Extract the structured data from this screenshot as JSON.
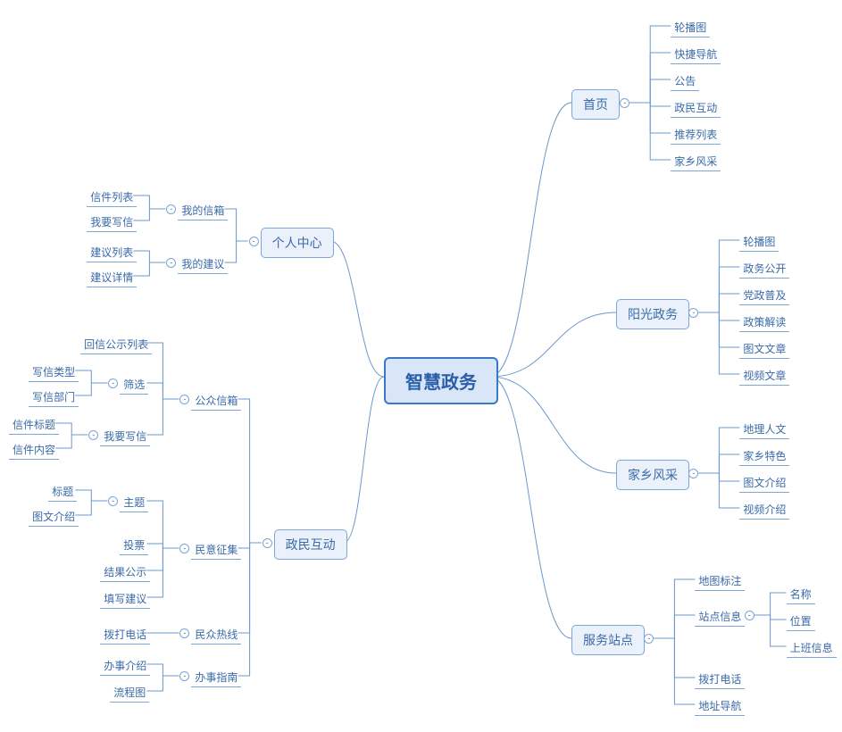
{
  "colors": {
    "root_border": "#3a78c8",
    "root_bg": "#d9e6f7",
    "root_text": "#2a5ea8",
    "node_border": "#7aa6d8",
    "node_bg": "#eaf1fa",
    "node_text": "#3a6aa8",
    "edge": "#6b98cc"
  },
  "root": {
    "label": "智慧政务"
  },
  "right": {
    "home": {
      "label": "首页",
      "leaves": [
        "轮播图",
        "快捷导航",
        "公告",
        "政民互动",
        "推荐列表",
        "家乡风采"
      ]
    },
    "sunny": {
      "label": "阳光政务",
      "leaves": [
        "轮播图",
        "政务公开",
        "党政普及",
        "政策解读",
        "图文文章",
        "视频文章"
      ]
    },
    "town": {
      "label": "家乡风采",
      "leaves": [
        "地理人文",
        "家乡特色",
        "图文介绍",
        "视频介绍"
      ]
    },
    "service": {
      "label": "服务站点",
      "leaves": [
        "地图标注",
        "站点信息",
        "拨打电话",
        "地址导航"
      ],
      "site_info_sub": [
        "名称",
        "位置",
        "上班信息"
      ]
    }
  },
  "left": {
    "personal": {
      "label": "个人中心",
      "mailbox": {
        "label": "我的信箱",
        "leaves": [
          "信件列表",
          "我要写信"
        ]
      },
      "suggest": {
        "label": "我的建议",
        "leaves": [
          "建议列表",
          "建议详情"
        ]
      }
    },
    "interact": {
      "label": "政民互动",
      "public_mail": {
        "label": "公众信箱",
        "leaf_simple": "回信公示列表",
        "filter": {
          "label": "筛选",
          "leaves": [
            "写信类型",
            "写信部门"
          ]
        },
        "write": {
          "label": "我要写信",
          "leaves": [
            "信件标题",
            "信件内容"
          ]
        }
      },
      "poll": {
        "label": "民意征集",
        "topic": {
          "label": "主题",
          "leaves": [
            "标题",
            "图文介绍"
          ]
        },
        "leaves": [
          "投票",
          "结果公示",
          "填写建议"
        ]
      },
      "hotline": {
        "label": "民众热线",
        "leaves": [
          "拨打电话"
        ]
      },
      "guide": {
        "label": "办事指南",
        "leaves": [
          "办事介绍",
          "流程图"
        ]
      }
    }
  }
}
